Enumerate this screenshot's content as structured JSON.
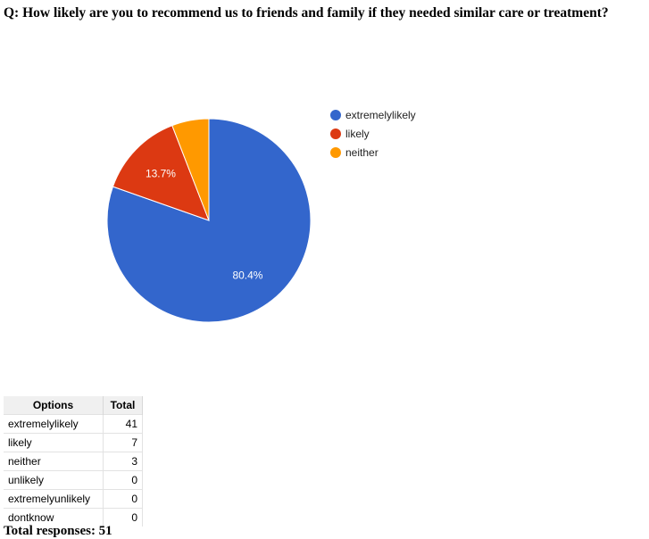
{
  "question": "Q: How likely are you to recommend us to friends and family if they needed similar care or treatment?",
  "chart_data": {
    "type": "pie",
    "categories": [
      "extremelylikely",
      "likely",
      "neither"
    ],
    "values": [
      41,
      7,
      3
    ],
    "colors": [
      "#3366cc",
      "#dc3912",
      "#ff9900"
    ],
    "slice_labels": [
      "80.4%",
      "13.7%",
      ""
    ],
    "legend_position": "right"
  },
  "table": {
    "headers": [
      "Options",
      "Total"
    ],
    "rows": [
      {
        "option": "extremelylikely",
        "total": "41"
      },
      {
        "option": "likely",
        "total": "7"
      },
      {
        "option": "neither",
        "total": "3"
      },
      {
        "option": "unlikely",
        "total": "0"
      },
      {
        "option": "extremelyunlikely",
        "total": "0"
      },
      {
        "option": "dontknow",
        "total": "0"
      }
    ]
  },
  "total_responses_label": "Total responses: 51"
}
